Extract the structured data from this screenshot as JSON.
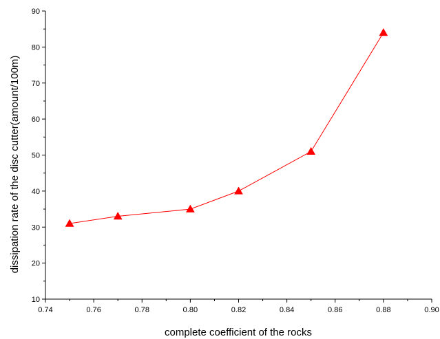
{
  "chart_data": {
    "type": "line",
    "title": "",
    "xlabel": "complete coefficient of the rocks",
    "ylabel": "dissipation rate of the disc cutter(amount/100m)",
    "xlim": [
      0.74,
      0.9
    ],
    "ylim": [
      10,
      90
    ],
    "x_ticks": [
      "0.74",
      "0.76",
      "0.78",
      "0.80",
      "0.82",
      "0.84",
      "0.86",
      "0.88",
      "0.90"
    ],
    "y_ticks": [
      "10",
      "20",
      "30",
      "40",
      "50",
      "60",
      "70",
      "80",
      "90"
    ],
    "grid": false,
    "legend": "none",
    "series": [
      {
        "color": "#ff0000",
        "marker": "triangle",
        "x": [
          0.75,
          0.77,
          0.8,
          0.82,
          0.85,
          0.88
        ],
        "y": [
          31,
          33,
          35,
          40,
          51,
          84
        ]
      }
    ]
  }
}
